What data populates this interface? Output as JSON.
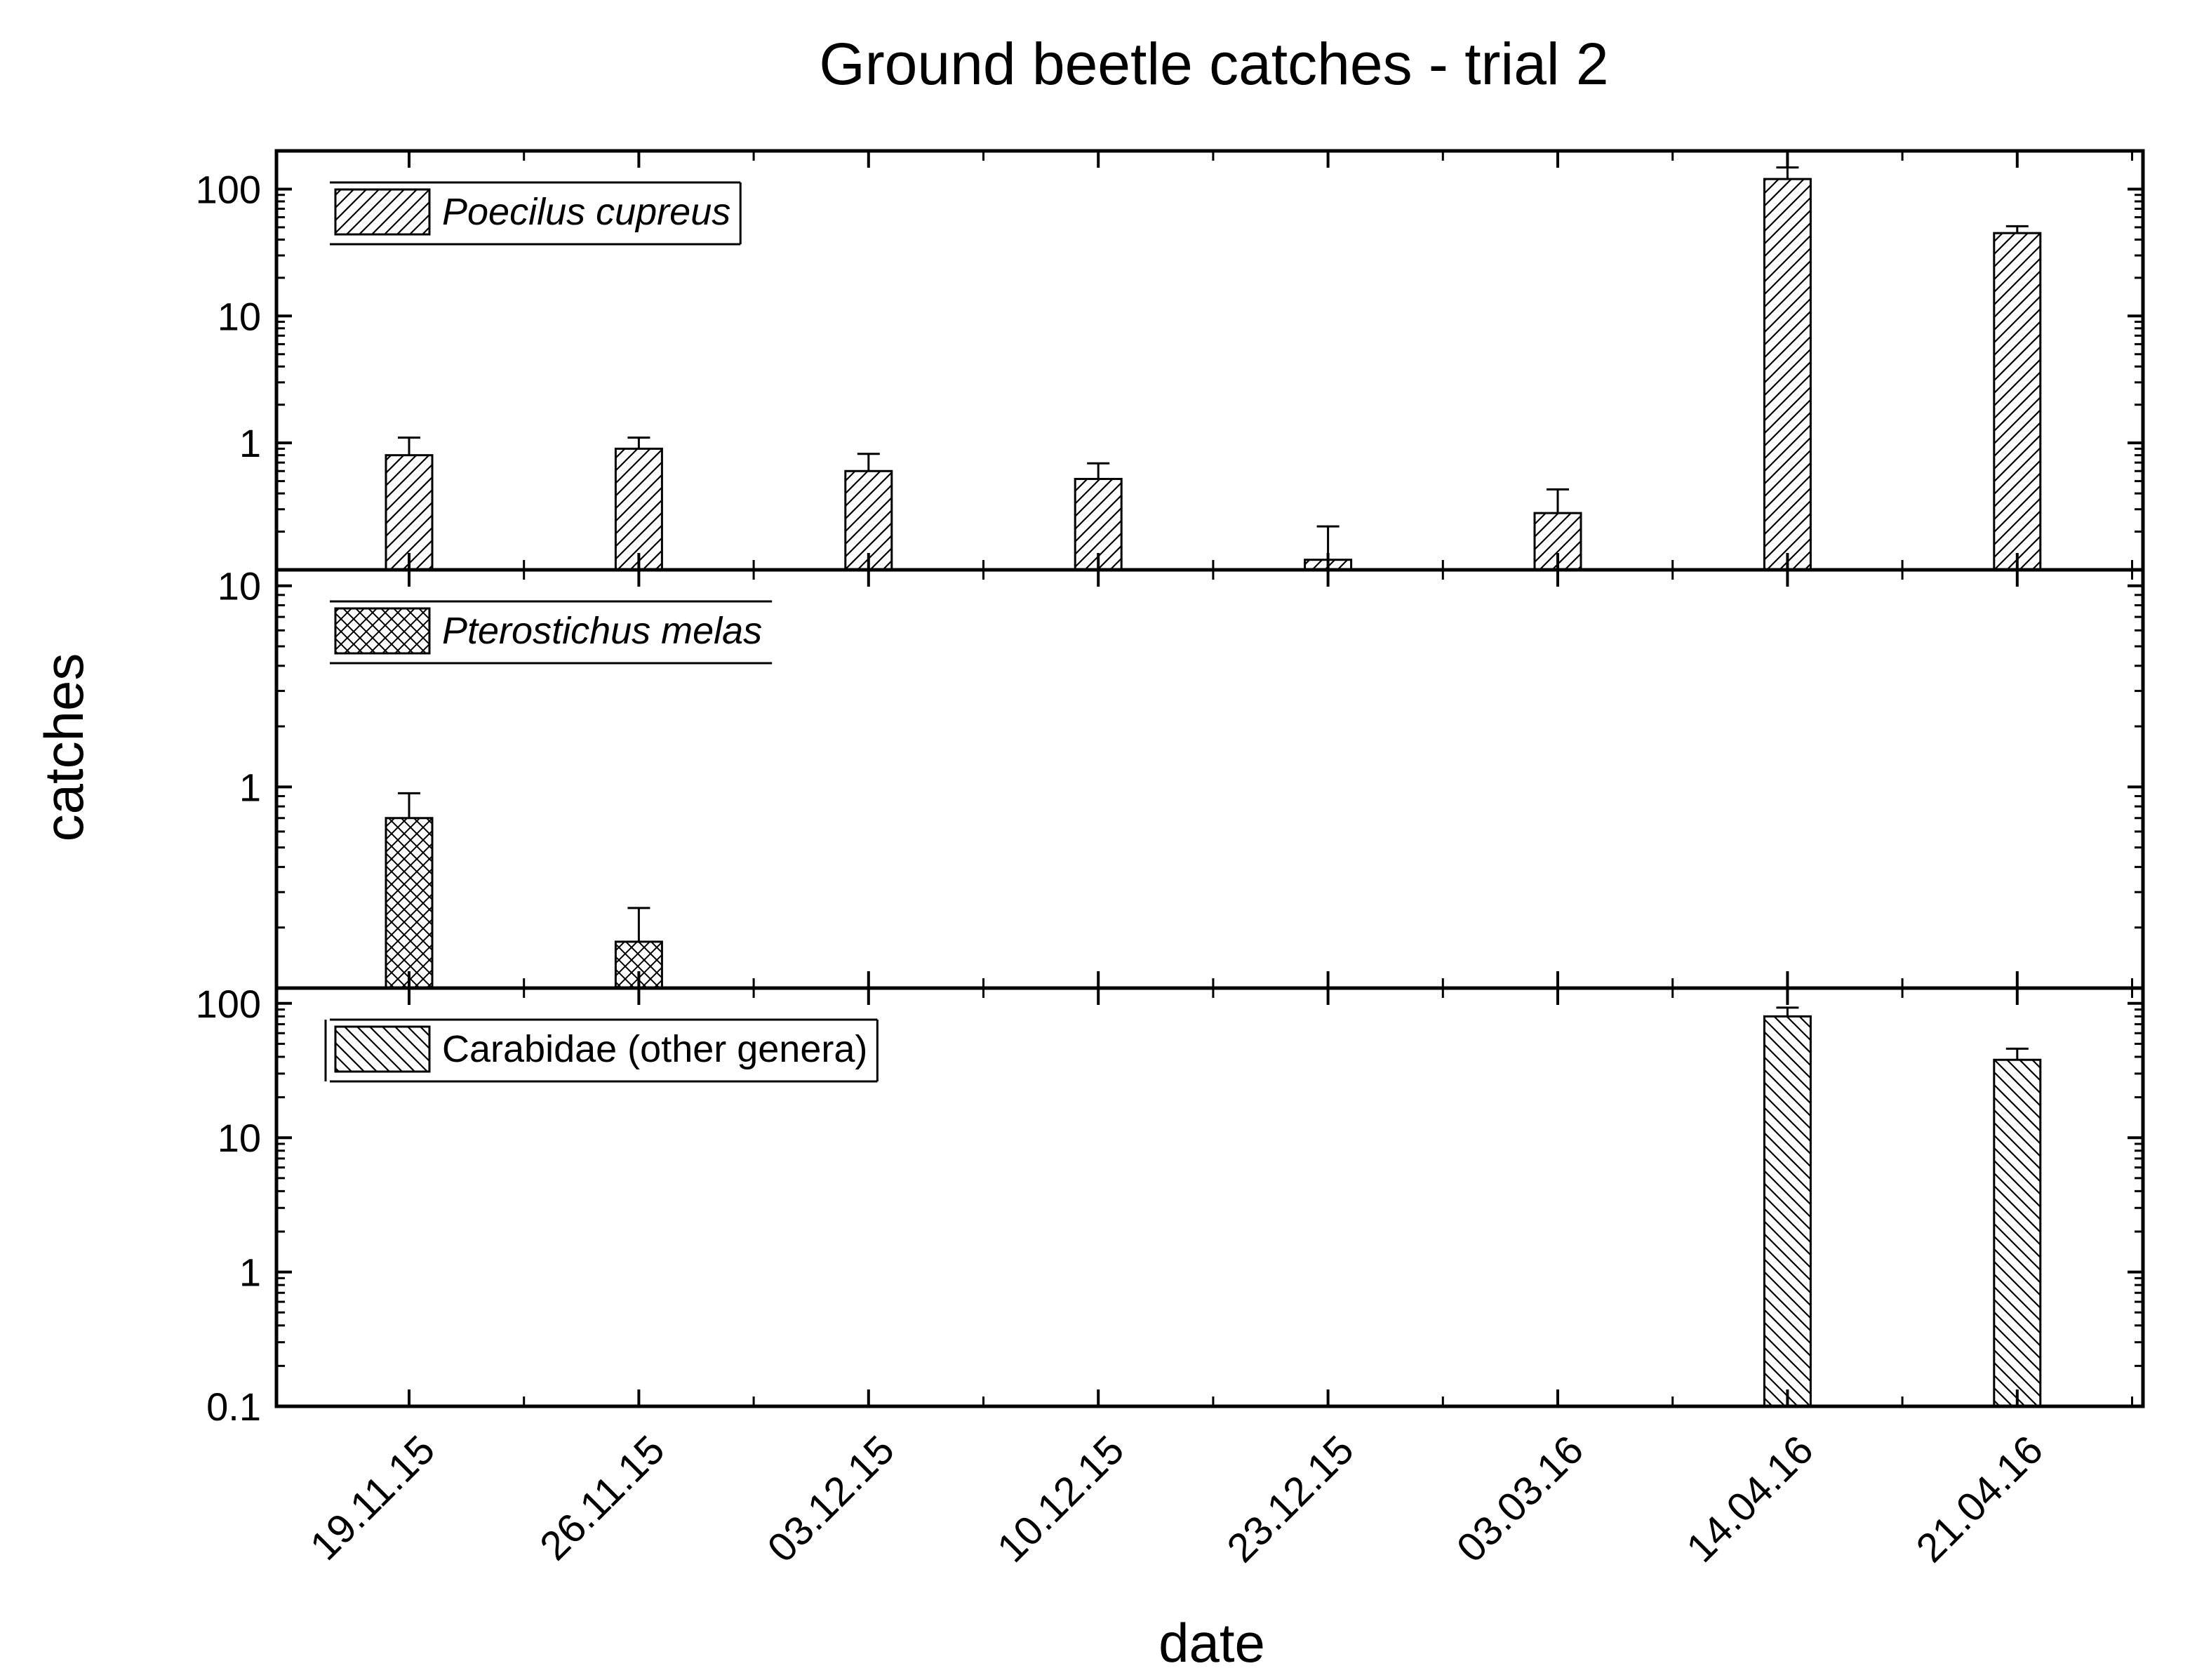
{
  "chart_data": {
    "type": "bar",
    "title": "Ground beetle catches - trial 2",
    "xlabel": "date",
    "ylabel": "catches",
    "yscale": "log",
    "categories": [
      "19.11.15",
      "26.11.15",
      "03.12.15",
      "10.12.15",
      "23.12.15",
      "03.03.16",
      "14.04.16",
      "21.04.16"
    ],
    "panels": [
      {
        "name": "Poecilus cupreus",
        "pattern": "diag-up",
        "legend_italic": true,
        "ylim": [
          0.1,
          200
        ],
        "yticks": [
          1,
          10,
          100
        ],
        "ytick_labels": [
          "1",
          "10",
          "100"
        ],
        "values": [
          0.8,
          0.9,
          0.6,
          0.52,
          0.12,
          0.28,
          120,
          45
        ],
        "errors": [
          0.3,
          0.2,
          0.22,
          0.17,
          0.1,
          0.15,
          28,
          6
        ]
      },
      {
        "name": "Pterostichus melas",
        "pattern": "crosshatch",
        "legend_italic": true,
        "ylim": [
          0.1,
          12
        ],
        "yticks": [
          1,
          10
        ],
        "ytick_labels": [
          "1",
          "10"
        ],
        "values": [
          0.7,
          0.17,
          null,
          null,
          null,
          null,
          null,
          null
        ],
        "errors": [
          0.23,
          0.08,
          null,
          null,
          null,
          null,
          null,
          null
        ]
      },
      {
        "name": "Carabidae (other genera)",
        "pattern": "diag-down",
        "legend_italic": false,
        "ylim": [
          0.1,
          130
        ],
        "yticks": [
          0.1,
          1,
          10,
          100
        ],
        "ytick_labels": [
          "0.1",
          "1",
          "10",
          "100"
        ],
        "values": [
          null,
          null,
          null,
          null,
          null,
          null,
          80,
          38
        ],
        "errors": [
          null,
          null,
          null,
          null,
          null,
          null,
          13,
          8
        ]
      }
    ]
  }
}
